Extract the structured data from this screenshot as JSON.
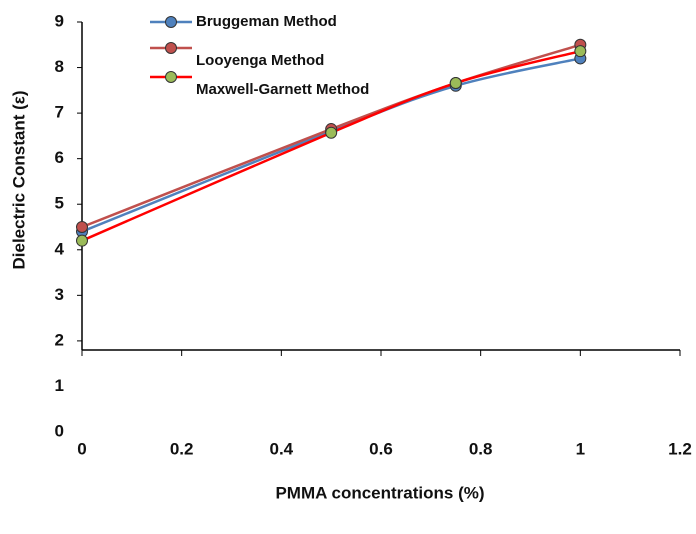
{
  "chart_data": {
    "type": "line",
    "x_label": "PMMA concentrations (%)",
    "y_label": "Dielectric Constant (ε)",
    "x": [
      0,
      0.5,
      0.75,
      1
    ],
    "series": [
      {
        "name": "Bruggeman Method",
        "color": "#4f81bd",
        "marker_color": "#4f81bd",
        "values": [
          4.4,
          6.6,
          7.6,
          8.2
        ]
      },
      {
        "name": "Looyenga Method",
        "color": "#c0504d",
        "marker_color": "#c0504d",
        "values": [
          4.5,
          6.65,
          7.66,
          8.5
        ]
      },
      {
        "name": "Maxwell-Garnett Method",
        "color": "#ff0000",
        "marker_color": "#9bbb59",
        "values": [
          4.2,
          6.57,
          7.66,
          8.36
        ]
      }
    ],
    "xlim": [
      0,
      1.2
    ],
    "xticks": [
      0,
      0.2,
      0.4,
      0.6,
      0.8,
      1,
      1.2
    ],
    "ylim": [
      0,
      9
    ],
    "yticks": [
      0,
      1,
      2,
      3,
      4,
      5,
      6,
      7,
      8,
      9
    ]
  }
}
